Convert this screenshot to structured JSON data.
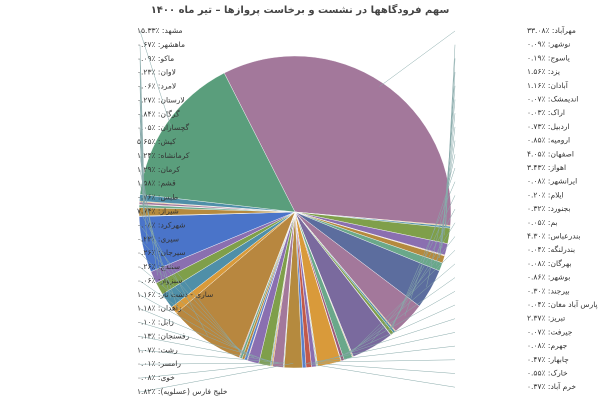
{
  "chart_data": {
    "type": "pie",
    "title": "سهم فرودگاهها در نشست و برخاست پروازها – تیر ماه ۱۴۰۰",
    "categories": [
      "مهرآباد",
      "نوشهر",
      "یاسوج",
      "یزد",
      "آبادان",
      "اندیمشک",
      "اراک",
      "اردبیل",
      "ارومیه",
      "اصفهان",
      "اهواز",
      "ایرانشهر",
      "ایلام",
      "بجنورد",
      "بم",
      "بندرعباس",
      "بندرلنگه",
      "بهرگان",
      "بوشهر",
      "بیرجند",
      "پارس آباد مغان",
      "تبریز",
      "جیرفت",
      "جهرم",
      "چابهار",
      "خارک",
      "خرم آباد",
      "خلیج فارس (عسلویه)",
      "خوی",
      "رامسر",
      "رشت",
      "رفسنجان",
      "زابل",
      "زاهدان",
      "ساری - دشت ناز",
      "سبزوار",
      "سنندج",
      "سیرجان",
      "سیری",
      "شهرکرد",
      "شیراز",
      "طبس",
      "قشم",
      "کرمان",
      "کرمانشاه",
      "کیش",
      "گچساران",
      "گرگان",
      "لارستان",
      "لامرد",
      "لاوان",
      "ماکو",
      "ماهشهر",
      "مشهد"
    ],
    "values": [
      33.08,
      0.09,
      0.19,
      1.56,
      1.16,
      0.07,
      0.03,
      0.73,
      0.85,
      4.05,
      3.43,
      0.08,
      0.2,
      0.32,
      0.05,
      4.3,
      0.04,
      0.08,
      0.86,
      0.3,
      0.04,
      2.37,
      0.07,
      0.08,
      0.47,
      0.55,
      0.37,
      1.82,
      0.08,
      0.01,
      1.07,
      0.13,
      0.1,
      1.18,
      1.16,
      0.06,
      0.26,
      0.26,
      0.23,
      0.08,
      7.74,
      0.76,
      1.58,
      1.29,
      1.24,
      5.65,
      0.05,
      0.84,
      0.27,
      0.06,
      0.23,
      0.09,
      0.67,
      15.33
    ],
    "value_labels": [
      "٪۳۳.۰۸",
      "٪۰.۰۹",
      "٪۰.۱۹",
      "٪۱.۵۶",
      "٪۱.۱۶",
      "٪۰.۰۷",
      "٪۰.۰۳",
      "٪۰.۷۳",
      "٪۰.۸۵",
      "٪۴.۰۵",
      "٪۳.۴۳",
      "٪۰.۰۸",
      "٪۰.۲۰",
      "٪۰.۳۲",
      "٪۰.۰۵",
      "٪۴.۳۰",
      "٪۰.۰۴",
      "٪۰.۰۸",
      "٪۰.۸۶",
      "٪۰.۳۰",
      "٪۰.۰۴",
      "٪۲.۳۷",
      "٪۰.۰۷",
      "٪۰.۰۸",
      "٪۰.۴۷",
      "٪۰.۵۵",
      "٪۰.۳۷",
      "٪۱.۸۲",
      "٪۰.۰۸",
      "٪۰.۰۱",
      "٪۱.۰۷",
      "٪۰.۱۳",
      "٪۰.۱۰",
      "٪۱.۱۸",
      "٪۱.۱۶",
      "٪۰.۰۶",
      "٪۰.۲۶",
      "٪۰.۲۶",
      "٪۰.۲۳",
      "٪۰.۰۸",
      "٪۷.۷۴",
      "٪۰.۷۶",
      "٪۱.۵۸",
      "٪۱.۲۹",
      "٪۱.۲۴",
      "٪۵.۶۵",
      "٪۰.۰۵",
      "٪۰.۸۴",
      "٪۰.۲۷",
      "٪۰.۰۶",
      "٪۰.۲۳",
      "٪۰.۰۹",
      "٪۰.۶۷",
      "٪۱۵.۳۳"
    ],
    "colors": [
      "#a3789b",
      "#d99a3a",
      "#4f8fa8",
      "#7f9f4a",
      "#8a6fb0",
      "#c25a4a",
      "#5a7fc9",
      "#b58a3e",
      "#6aa88a",
      "#9a5a7a"
    ],
    "major_colors": {
      "مهرآباد": "#a3789b",
      "مشهد": "#5a9e7c",
      "شیراز": "#b8873f",
      "کیش": "#4a74c9",
      "اصفهان": "#5c6d9e",
      "بندرعباس": "#7a6a9e"
    }
  }
}
